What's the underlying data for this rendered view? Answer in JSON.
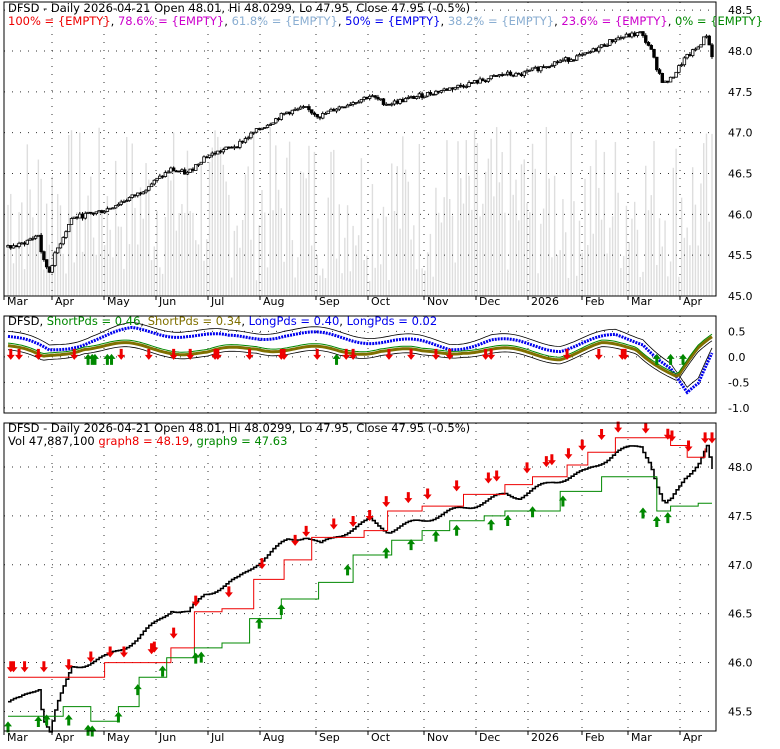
{
  "colors": {
    "bg": "#ffffff",
    "frame": "#000000",
    "grid": "#333333",
    "volume": "#dedede",
    "red": "#ee0000",
    "green": "#008800",
    "blue": "#0000ee",
    "olive": "#807000",
    "magenta": "#cc00cc",
    "lightblue": "#8aaed2",
    "dark": "#000000"
  },
  "chart_data": [
    {
      "type": "candlestick",
      "panel": "price",
      "title": "DFSD - Daily 2026-04-21 Open 48.01, Hi 48.0299, Lo 47.95, Close 47.95 (-0.5%)",
      "fib_legend": [
        {
          "text": "100% = {EMPTY}",
          "color": "#ee0000"
        },
        {
          "text": ", ",
          "color": "#000000"
        },
        {
          "text": "78.6% = {EMPTY}",
          "color": "#cc00cc"
        },
        {
          "text": ", ",
          "color": "#000000"
        },
        {
          "text": "61.8% = {EMPTY}",
          "color": "#8aaed2"
        },
        {
          "text": ", ",
          "color": "#000000"
        },
        {
          "text": "50% = {EMPTY}",
          "color": "#0000ee"
        },
        {
          "text": ", ",
          "color": "#000000"
        },
        {
          "text": "38.2% = {EMPTY}",
          "color": "#8aaed2"
        },
        {
          "text": ", ",
          "color": "#000000"
        },
        {
          "text": "23.6% = {EMPTY}",
          "color": "#cc00cc"
        },
        {
          "text": ", ",
          "color": "#000000"
        },
        {
          "text": "0% = {EMPTY}",
          "color": "#008800"
        }
      ],
      "y_ticks": [
        "45.0",
        "45.5",
        "46.0",
        "46.5",
        "47.0",
        "47.5",
        "48.0",
        "48.5"
      ],
      "ylim": [
        45.0,
        48.6
      ],
      "x_ticks": [
        "Mar",
        "Apr",
        "May",
        "Jun",
        "Jul",
        "Aug",
        "Sep",
        "Oct",
        "Nov",
        "Dec",
        "2026",
        "Feb",
        "Mar",
        "Apr"
      ],
      "close_path": [
        [
          0,
          45.6
        ],
        [
          8,
          45.62
        ],
        [
          22,
          45.75
        ],
        [
          25,
          45.45
        ],
        [
          30,
          45.3
        ],
        [
          35,
          45.55
        ],
        [
          46,
          45.95
        ],
        [
          70,
          46.05
        ],
        [
          94,
          46.25
        ],
        [
          118,
          46.55
        ],
        [
          130,
          46.5
        ],
        [
          142,
          46.7
        ],
        [
          166,
          46.85
        ],
        [
          178,
          47.0
        ],
        [
          202,
          47.25
        ],
        [
          215,
          47.3
        ],
        [
          226,
          47.2
        ],
        [
          238,
          47.3
        ],
        [
          262,
          47.45
        ],
        [
          275,
          47.35
        ],
        [
          298,
          47.45
        ],
        [
          322,
          47.55
        ],
        [
          346,
          47.65
        ],
        [
          360,
          47.72
        ],
        [
          370,
          47.7
        ],
        [
          394,
          47.85
        ],
        [
          418,
          47.95
        ],
        [
          440,
          48.15
        ],
        [
          458,
          48.22
        ],
        [
          465,
          48.05
        ],
        [
          470,
          47.8
        ],
        [
          475,
          47.6
        ],
        [
          480,
          47.65
        ],
        [
          490,
          47.9
        ],
        [
          500,
          48.05
        ],
        [
          506,
          48.2
        ],
        [
          510,
          47.95
        ]
      ],
      "volume_level": [
        0.05,
        0.58
      ],
      "volume_ylim": [
        0,
        1
      ]
    },
    {
      "type": "line",
      "panel": "oscillator",
      "legend": [
        {
          "text": "DFSD",
          "color": "#000000"
        },
        {
          "text": ", ",
          "color": "#000000"
        },
        {
          "text": "ShortPds = 0.46",
          "color": "#008800"
        },
        {
          "text": ", ",
          "color": "#000000"
        },
        {
          "text": "ShortPds = 0.34",
          "color": "#807000"
        },
        {
          "text": ", ",
          "color": "#000000"
        },
        {
          "text": "LongPds = 0.40",
          "color": "#0000ee"
        },
        {
          "text": ", ",
          "color": "#000000"
        },
        {
          "text": "LongPds = 0.02",
          "color": "#0000ee"
        }
      ],
      "y_ticks": [
        "0.5",
        "0.0",
        "-0.5",
        "-1.0"
      ],
      "ylim": [
        -1.1,
        0.8
      ],
      "x_ticks": [],
      "long_line_anchors": [
        [
          0,
          0.4
        ],
        [
          30,
          0.1
        ],
        [
          60,
          0.35
        ],
        [
          90,
          0.5
        ],
        [
          130,
          0.45
        ],
        [
          160,
          0.35
        ],
        [
          200,
          0.45
        ],
        [
          240,
          0.38
        ],
        [
          280,
          0.3
        ],
        [
          320,
          0.2
        ],
        [
          350,
          0.3
        ],
        [
          400,
          0.18
        ],
        [
          440,
          0.38
        ],
        [
          460,
          0.3
        ],
        [
          480,
          -0.2
        ],
        [
          492,
          -0.75
        ],
        [
          500,
          -0.6
        ],
        [
          510,
          0.02
        ]
      ],
      "short_line_anchors": [
        [
          0,
          0.22
        ],
        [
          25,
          -0.05
        ],
        [
          55,
          0.22
        ],
        [
          85,
          0.2
        ],
        [
          115,
          0.15
        ],
        [
          145,
          0.05
        ],
        [
          180,
          0.2
        ],
        [
          210,
          0.15
        ],
        [
          240,
          0.1
        ],
        [
          270,
          0.15
        ],
        [
          300,
          0.05
        ],
        [
          330,
          0.15
        ],
        [
          360,
          0.1
        ],
        [
          400,
          0.02
        ],
        [
          430,
          0.2
        ],
        [
          455,
          0.18
        ],
        [
          470,
          -0.1
        ],
        [
          485,
          -0.4
        ],
        [
          500,
          0.1
        ],
        [
          510,
          0.34
        ]
      ],
      "down_arrows_x": [
        2,
        8,
        22,
        48,
        82,
        102,
        120,
        132,
        150,
        152,
        175,
        198,
        200,
        224,
        245,
        250,
        276,
        292,
        310,
        320,
        346,
        350,
        405,
        428,
        445,
        447
      ],
      "up_arrows_x": [
        58,
        61,
        63,
        75,
        72,
        238,
        470,
        480,
        489
      ]
    },
    {
      "type": "step",
      "panel": "price2",
      "title": "DFSD - Daily 2026-04-21 Open 48.01, Hi 48.0299, Lo 47.95, Close 47.95 (-0.5%)",
      "legend": [
        {
          "text": "Vol 47,887,100",
          "color": "#000000"
        },
        {
          "text": "  graph8 = 48.19",
          "color": "#ee0000"
        },
        {
          "text": ", ",
          "color": "#000000"
        },
        {
          "text": "graph9 = 47.63",
          "color": "#008800"
        }
      ],
      "y_ticks": [
        "45.5",
        "46.0",
        "46.5",
        "47.0",
        "47.5",
        "48.0"
      ],
      "ylim": [
        45.3,
        48.45
      ],
      "x_ticks": [
        "Mar",
        "Apr",
        "May",
        "Jun",
        "Jul",
        "Aug",
        "Sep",
        "Oct",
        "Nov",
        "Dec",
        "2026",
        "Feb",
        "Mar",
        "Apr"
      ],
      "series": [
        {
          "name": "graph8",
          "color": "#ee0000",
          "last_value": 48.19,
          "points": [
            [
              0,
              45.85
            ],
            [
              40,
              45.85
            ],
            [
              70,
              46.0
            ],
            [
              100,
              46.0
            ],
            [
              118,
              46.15
            ],
            [
              135,
              46.52
            ],
            [
              155,
              46.55
            ],
            [
              178,
              46.85
            ],
            [
              200,
              47.05
            ],
            [
              220,
              47.28
            ],
            [
              258,
              47.35
            ],
            [
              275,
              47.55
            ],
            [
              300,
              47.6
            ],
            [
              330,
              47.72
            ],
            [
              360,
              47.82
            ],
            [
              380,
              47.9
            ],
            [
              405,
              48.02
            ],
            [
              420,
              48.15
            ],
            [
              440,
              48.3
            ],
            [
              460,
              48.3
            ],
            [
              480,
              48.22
            ],
            [
              492,
              48.1
            ],
            [
              505,
              48.19
            ]
          ]
        },
        {
          "name": "graph9",
          "color": "#008800",
          "last_value": 47.63,
          "points": [
            [
              0,
              45.45
            ],
            [
              40,
              45.55
            ],
            [
              60,
              45.4
            ],
            [
              80,
              45.55
            ],
            [
              95,
              45.85
            ],
            [
              115,
              46.05
            ],
            [
              135,
              46.15
            ],
            [
              155,
              46.2
            ],
            [
              175,
              46.45
            ],
            [
              198,
              46.65
            ],
            [
              225,
              46.82
            ],
            [
              250,
              47.1
            ],
            [
              278,
              47.25
            ],
            [
              300,
              47.35
            ],
            [
              320,
              47.45
            ],
            [
              345,
              47.5
            ],
            [
              360,
              47.55
            ],
            [
              400,
              47.75
            ],
            [
              430,
              47.9
            ],
            [
              470,
              47.55
            ],
            [
              480,
              47.6
            ],
            [
              500,
              47.63
            ],
            [
              510,
              47.63
            ]
          ]
        }
      ],
      "down_arrows_x": [
        2,
        4,
        12,
        26,
        44,
        60,
        74,
        84,
        104,
        106,
        120,
        136,
        160,
        184,
        208,
        216,
        236,
        250,
        262,
        274,
        290,
        304,
        325,
        348,
        354,
        376,
        390,
        394,
        406,
        416,
        430,
        442,
        462,
        478,
        481,
        493,
        505,
        510
      ],
      "up_arrows_x": [
        0,
        22,
        28,
        44,
        58,
        61,
        80,
        94,
        112,
        136,
        140,
        182,
        198,
        246,
        274,
        292,
        310,
        325,
        350,
        362,
        380,
        402,
        460,
        470,
        478
      ]
    }
  ]
}
